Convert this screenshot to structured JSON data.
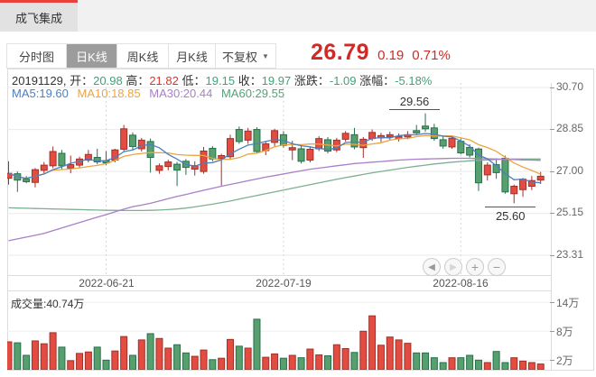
{
  "window": {
    "tab_label": "成飞集成"
  },
  "toolbar": {
    "items": [
      "分时图",
      "日K线",
      "周K线",
      "月K线"
    ],
    "active": "日K线",
    "dropdown_label": "不复权"
  },
  "quote": {
    "price": "26.79",
    "change": "0.19",
    "change_pct": "0.71%"
  },
  "info": {
    "date": "20191129,",
    "fields": [
      {
        "label": "开：",
        "value": "20.98",
        "dir": "down"
      },
      {
        "label": "高：",
        "value": "21.82",
        "dir": "up"
      },
      {
        "label": "低：",
        "value": "19.15",
        "dir": "down"
      },
      {
        "label": "收：",
        "value": "19.97",
        "dir": "down"
      },
      {
        "label": "涨跌：",
        "value": "-1.09",
        "dir": "down"
      },
      {
        "label": "涨幅：",
        "value": "-5.18%",
        "dir": "down"
      }
    ]
  },
  "legend": {
    "items": [
      {
        "label": "MA5:19.60",
        "color": "#4d7ebf"
      },
      {
        "label": "MA10:18.85",
        "color": "#eda33f"
      },
      {
        "label": "MA30:20.44",
        "color": "#a97fc8"
      },
      {
        "label": "MA60:29.55",
        "color": "#55a077"
      }
    ]
  },
  "volume_panel": {
    "title": "成交量:40.74万"
  },
  "axes": {
    "price_labels": [
      "30.70",
      "28.85",
      "27.00",
      "25.15",
      "23.31"
    ],
    "volume_labels": [
      "14万",
      "8万",
      "2万"
    ],
    "date_labels": [
      "2022-06-21",
      "2022-07-19",
      "2022-08-16"
    ]
  },
  "nav": {
    "buttons": [
      {
        "name": "pan-left",
        "glyph": "◀"
      },
      {
        "name": "pan-right",
        "glyph": "▶"
      },
      {
        "name": "zoom-in",
        "glyph": "+"
      },
      {
        "name": "zoom-out",
        "glyph": "−"
      }
    ]
  },
  "chart_data": {
    "type": "candlestick",
    "title": "成飞集成 日K线",
    "price_axis": {
      "max": 30.7,
      "min": 23.31,
      "gridlines": [
        30.7,
        28.85,
        27.0,
        25.15,
        23.31
      ]
    },
    "volume_axis": {
      "unit": "万",
      "gridlines": [
        14,
        8,
        2
      ]
    },
    "date_gridlines": [
      {
        "label": "2022-06-21",
        "candle": 11
      },
      {
        "label": "2022-07-19",
        "candle": 31
      },
      {
        "label": "2022-08-16",
        "candle": 51
      }
    ],
    "colors": {
      "up_fill": "#e24c41",
      "up_border": "#a03129",
      "down_fill": "#57a06e",
      "down_border": "#25704d",
      "ma5": "#4d7ebf",
      "ma10": "#eda33f",
      "ma30": "#a97fc8",
      "ma60": "#7db092",
      "quote_red": "#cf2a26",
      "text_green": "#44a077"
    },
    "candles": [
      [
        26.7,
        27.45,
        26.42,
        26.92
      ],
      [
        26.9,
        27.0,
        26.1,
        26.62
      ],
      [
        26.66,
        26.8,
        26.48,
        26.55
      ],
      [
        26.52,
        27.15,
        26.3,
        27.08
      ],
      [
        27.05,
        27.42,
        26.92,
        27.28
      ],
      [
        27.25,
        28.1,
        27.15,
        27.88
      ],
      [
        27.8,
        27.95,
        27.1,
        27.25
      ],
      [
        27.15,
        27.7,
        26.92,
        27.3
      ],
      [
        27.28,
        27.65,
        27.15,
        27.55
      ],
      [
        27.5,
        27.95,
        27.4,
        27.75
      ],
      [
        27.62,
        28.0,
        27.32,
        27.42
      ],
      [
        27.48,
        27.9,
        27.28,
        27.38
      ],
      [
        27.5,
        28.0,
        27.4,
        27.95
      ],
      [
        27.98,
        29.05,
        27.9,
        28.88
      ],
      [
        28.6,
        28.72,
        27.95,
        28.1
      ],
      [
        28.0,
        28.48,
        27.88,
        28.38
      ],
      [
        28.32,
        28.45,
        26.95,
        27.62
      ],
      [
        27.05,
        27.35,
        26.9,
        27.25
      ],
      [
        27.22,
        27.52,
        27.05,
        27.42
      ],
      [
        27.32,
        27.42,
        26.36,
        27.06
      ],
      [
        27.45,
        27.55,
        26.85,
        27.18
      ],
      [
        27.1,
        27.45,
        26.82,
        27.26
      ],
      [
        27.0,
        28.08,
        26.9,
        27.9
      ],
      [
        28.02,
        28.12,
        27.45,
        27.55
      ],
      [
        27.58,
        27.78,
        26.38,
        27.7
      ],
      [
        27.65,
        28.62,
        27.55,
        28.45
      ],
      [
        28.85,
        28.98,
        28.22,
        28.32
      ],
      [
        28.38,
        28.92,
        28.22,
        28.78
      ],
      [
        28.85,
        28.95,
        27.8,
        27.88
      ],
      [
        27.92,
        28.32,
        27.72,
        28.22
      ],
      [
        28.28,
        28.88,
        28.12,
        28.8
      ],
      [
        28.62,
        28.78,
        28.05,
        28.15
      ],
      [
        27.95,
        28.35,
        27.5,
        28.05
      ],
      [
        28.0,
        28.12,
        27.35,
        27.45
      ],
      [
        27.5,
        28.08,
        27.4,
        27.98
      ],
      [
        28.0,
        28.55,
        27.9,
        28.45
      ],
      [
        28.4,
        28.52,
        27.8,
        27.9
      ],
      [
        27.95,
        28.48,
        27.85,
        28.38
      ],
      [
        28.42,
        28.78,
        28.32,
        28.68
      ],
      [
        28.62,
        28.92,
        27.98,
        28.08
      ],
      [
        28.05,
        28.52,
        27.6,
        28.42
      ],
      [
        28.45,
        28.85,
        28.35,
        28.72
      ],
      [
        28.48,
        28.7,
        28.3,
        28.58
      ],
      [
        28.52,
        28.75,
        28.4,
        28.62
      ],
      [
        28.45,
        28.68,
        28.32,
        28.55
      ],
      [
        28.52,
        28.78,
        28.42,
        28.62
      ],
      [
        28.8,
        29.05,
        28.62,
        28.7
      ],
      [
        29.0,
        29.56,
        28.75,
        28.88
      ],
      [
        28.92,
        29.1,
        28.35,
        28.45
      ],
      [
        28.4,
        28.55,
        28.0,
        28.12
      ],
      [
        28.08,
        28.55,
        28.0,
        28.46
      ],
      [
        28.33,
        28.45,
        27.75,
        27.82
      ],
      [
        28.06,
        28.2,
        27.62,
        27.72
      ],
      [
        27.99,
        28.05,
        26.14,
        26.5
      ],
      [
        26.85,
        27.4,
        26.6,
        27.28
      ],
      [
        27.3,
        27.58,
        26.68,
        26.95
      ],
      [
        27.58,
        27.7,
        26.02,
        26.1
      ],
      [
        26.02,
        26.42,
        25.6,
        26.35
      ],
      [
        26.2,
        26.72,
        25.88,
        26.66
      ],
      [
        26.35,
        26.8,
        26.18,
        26.6
      ],
      [
        26.62,
        26.98,
        26.45,
        26.79
      ]
    ],
    "volumes_wan": [
      5.8,
      5.6,
      3.0,
      6.0,
      5.4,
      7.7,
      4.7,
      1.9,
      3.4,
      3.7,
      4.7,
      2.0,
      3.9,
      6.9,
      3.0,
      6.2,
      7.5,
      6.5,
      4.5,
      5.2,
      3.5,
      2.8,
      4.1,
      2.1,
      2.4,
      6.3,
      4.9,
      4.5,
      10.5,
      2.6,
      3.3,
      2.4,
      3.0,
      2.5,
      4.3,
      3.1,
      2.9,
      5.2,
      4.4,
      3.6,
      8.0,
      11.2,
      5.1,
      6.8,
      6.2,
      5.5,
      3.5,
      3.5,
      2.5,
      1.5,
      2.5,
      2.5,
      3.0,
      2.0,
      1.5,
      3.8,
      1.5,
      2.5,
      1.8,
      1.5,
      1.2
    ],
    "ma30": [
      23.95,
      24.03,
      24.11,
      24.19,
      24.27,
      24.39,
      24.51,
      24.63,
      24.75,
      24.87,
      24.99,
      25.1,
      25.22,
      25.34,
      25.45,
      25.52,
      25.6,
      25.7,
      25.8,
      25.9,
      25.99,
      26.08,
      26.17,
      26.26,
      26.35,
      26.43,
      26.51,
      26.59,
      26.67,
      26.75,
      26.82,
      26.89,
      26.96,
      27.03,
      27.1,
      27.15,
      27.2,
      27.25,
      27.3,
      27.35,
      27.38,
      27.41,
      27.44,
      27.47,
      27.5,
      27.52,
      27.54,
      27.55,
      27.56,
      27.57,
      27.58,
      27.58,
      27.58,
      27.57,
      27.56,
      27.55,
      27.54,
      27.53,
      27.51,
      27.5,
      27.49
    ],
    "ma60": [
      25.4,
      25.39,
      25.38,
      25.37,
      25.36,
      25.35,
      25.34,
      25.33,
      25.32,
      25.31,
      25.3,
      25.29,
      25.29,
      25.28,
      25.28,
      25.28,
      25.29,
      25.3,
      25.32,
      25.35,
      25.39,
      25.44,
      25.5,
      25.56,
      25.63,
      25.7,
      25.78,
      25.86,
      25.94,
      26.02,
      26.1,
      26.18,
      26.26,
      26.34,
      26.42,
      26.5,
      26.58,
      26.66,
      26.73,
      26.8,
      26.87,
      26.94,
      27.0,
      27.06,
      27.12,
      27.18,
      27.23,
      27.28,
      27.33,
      27.37,
      27.41,
      27.44,
      27.47,
      27.49,
      27.51,
      27.53,
      27.54,
      27.55,
      27.55,
      27.55,
      27.55
    ],
    "annotations": [
      {
        "text": "29.56",
        "candle": 47,
        "side": "above"
      },
      {
        "text": "25.60",
        "candle": 57,
        "side": "below"
      }
    ]
  }
}
